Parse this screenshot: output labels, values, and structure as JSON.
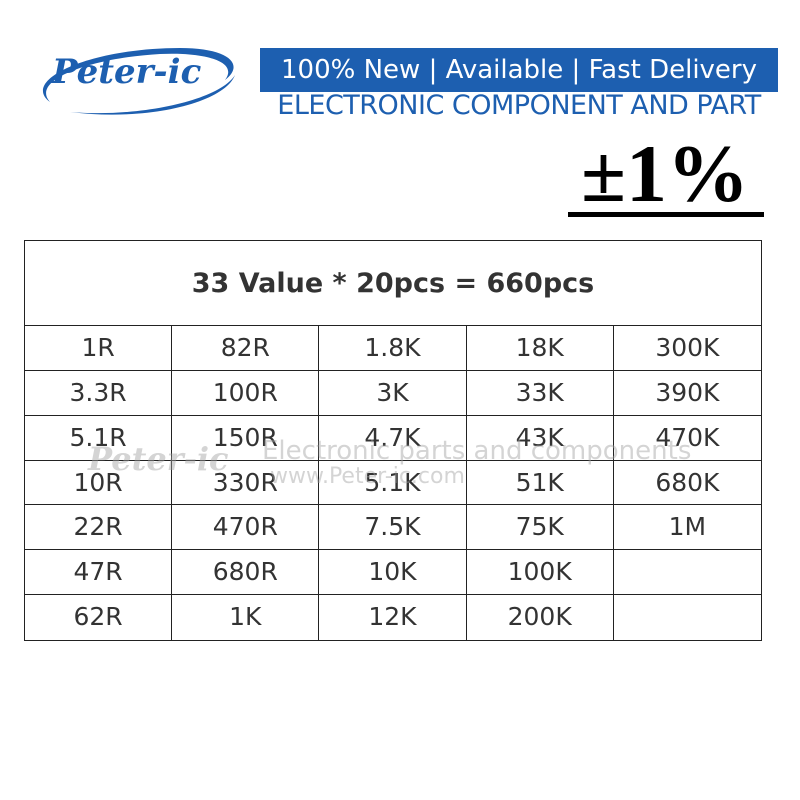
{
  "header": {
    "logo": "Peter-ic",
    "banner": "100% New | Available | Fast Delivery",
    "subtitle": "ELECTRONIC COMPONENT AND PART"
  },
  "tolerance": "±1%",
  "watermark": {
    "logo": "Peter-ic",
    "text": "Electronic parts and components",
    "url": "www.Peter-ic.com"
  },
  "table": {
    "title": "33 Value * 20pcs = 660pcs",
    "rows": [
      [
        "1R",
        "82R",
        "1.8K",
        "18K",
        "300K"
      ],
      [
        "3.3R",
        "100R",
        "3K",
        "33K",
        "390K"
      ],
      [
        "5.1R",
        "150R",
        "4.7K",
        "43K",
        "470K"
      ],
      [
        "10R",
        "330R",
        "5.1K",
        "51K",
        "680K"
      ],
      [
        "22R",
        "470R",
        "7.5K",
        "75K",
        "1M"
      ],
      [
        "47R",
        "680R",
        "10K",
        "100K"
      ],
      [
        "62R",
        "1K",
        "12K",
        "200K"
      ]
    ]
  }
}
